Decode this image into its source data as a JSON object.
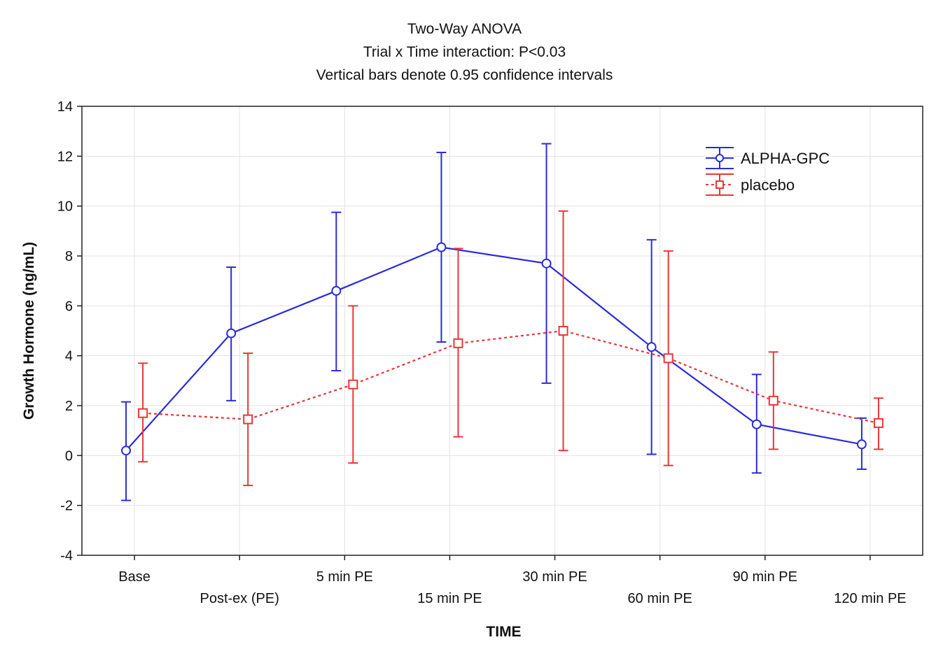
{
  "chart_data": {
    "type": "line",
    "title": "Two-Way ANOVA",
    "subtitle_lines": [
      "Trial x Time interaction: P<0.03",
      "Vertical bars denote 0.95 confidence intervals"
    ],
    "xlabel": "TIME",
    "ylabel": "Growth Hormone (ng/mL)",
    "categories": [
      "Base",
      "Post-ex (PE)",
      "5 min PE",
      "15 min PE",
      "30 min PE",
      "60 min PE",
      "90 min PE",
      "120 min PE"
    ],
    "ylim": [
      -4,
      14
    ],
    "yticks": [
      "-4",
      "-2",
      "0",
      "2",
      "4",
      "6",
      "8",
      "10",
      "12",
      "14"
    ],
    "grid": true,
    "legend_position": "top-right",
    "series": [
      {
        "name": "ALPHA-GPC",
        "color": "#2b2bd9",
        "line_style": "solid",
        "marker": "circle",
        "values": [
          0.2,
          4.9,
          6.6,
          8.35,
          7.7,
          4.35,
          1.25,
          0.45
        ],
        "ci_low": [
          -1.8,
          2.2,
          3.4,
          4.55,
          2.9,
          0.05,
          -0.7,
          -0.55
        ],
        "ci_high": [
          2.15,
          7.55,
          9.75,
          12.15,
          12.5,
          8.65,
          3.25,
          1.5
        ]
      },
      {
        "name": "placebo",
        "color": "#e8373b",
        "line_style": "dotted",
        "marker": "square",
        "values": [
          1.7,
          1.45,
          2.85,
          4.5,
          5.0,
          3.9,
          2.2,
          1.3
        ],
        "ci_low": [
          -0.25,
          -1.2,
          -0.3,
          0.75,
          0.2,
          -0.4,
          0.25,
          0.25
        ],
        "ci_high": [
          3.7,
          4.1,
          6.0,
          8.3,
          9.8,
          8.2,
          4.15,
          2.3
        ]
      }
    ]
  }
}
